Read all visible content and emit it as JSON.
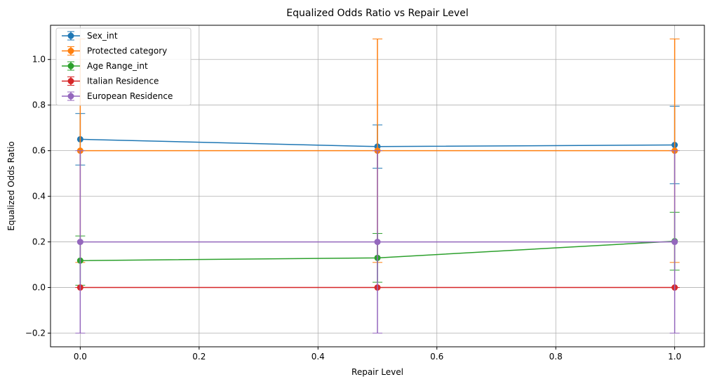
{
  "chart_data": {
    "type": "line",
    "title": "Equalized Odds Ratio vs Repair Level",
    "xlabel": "Repair Level",
    "ylabel": "Equalized Odds Ratio",
    "xlim": [
      -0.05,
      1.05
    ],
    "ylim": [
      -0.26,
      1.15
    ],
    "xticks": [
      "0.0",
      "0.2",
      "0.4",
      "0.6",
      "0.8",
      "1.0"
    ],
    "yticks": [
      "−0.2",
      "0.0",
      "0.2",
      "0.4",
      "0.6",
      "0.8",
      "1.0"
    ],
    "grid": true,
    "legend_position": "upper-left",
    "x": [
      0.0,
      0.5,
      1.0
    ],
    "series": [
      {
        "name": "Sex_int",
        "color": "#1f77b4",
        "values": [
          0.65,
          0.618,
          0.625
        ],
        "err": [
          0.113,
          0.095,
          0.17
        ]
      },
      {
        "name": "Protected category",
        "color": "#ff7f0e",
        "values": [
          0.6,
          0.6,
          0.6
        ],
        "err": [
          0.49,
          0.49,
          0.49
        ]
      },
      {
        "name": "Age Range_int",
        "color": "#2ca02c",
        "values": [
          0.118,
          0.13,
          0.203
        ],
        "err": [
          0.108,
          0.107,
          0.127
        ]
      },
      {
        "name": "Italian Residence",
        "color": "#d62728",
        "values": [
          0.0,
          0.0,
          0.0
        ],
        "err": [
          0.0,
          0.0,
          0.0
        ]
      },
      {
        "name": "European Residence",
        "color": "#9467bd",
        "values": [
          0.2,
          0.2,
          0.2
        ],
        "err": [
          0.4,
          0.4,
          0.4
        ]
      }
    ]
  }
}
